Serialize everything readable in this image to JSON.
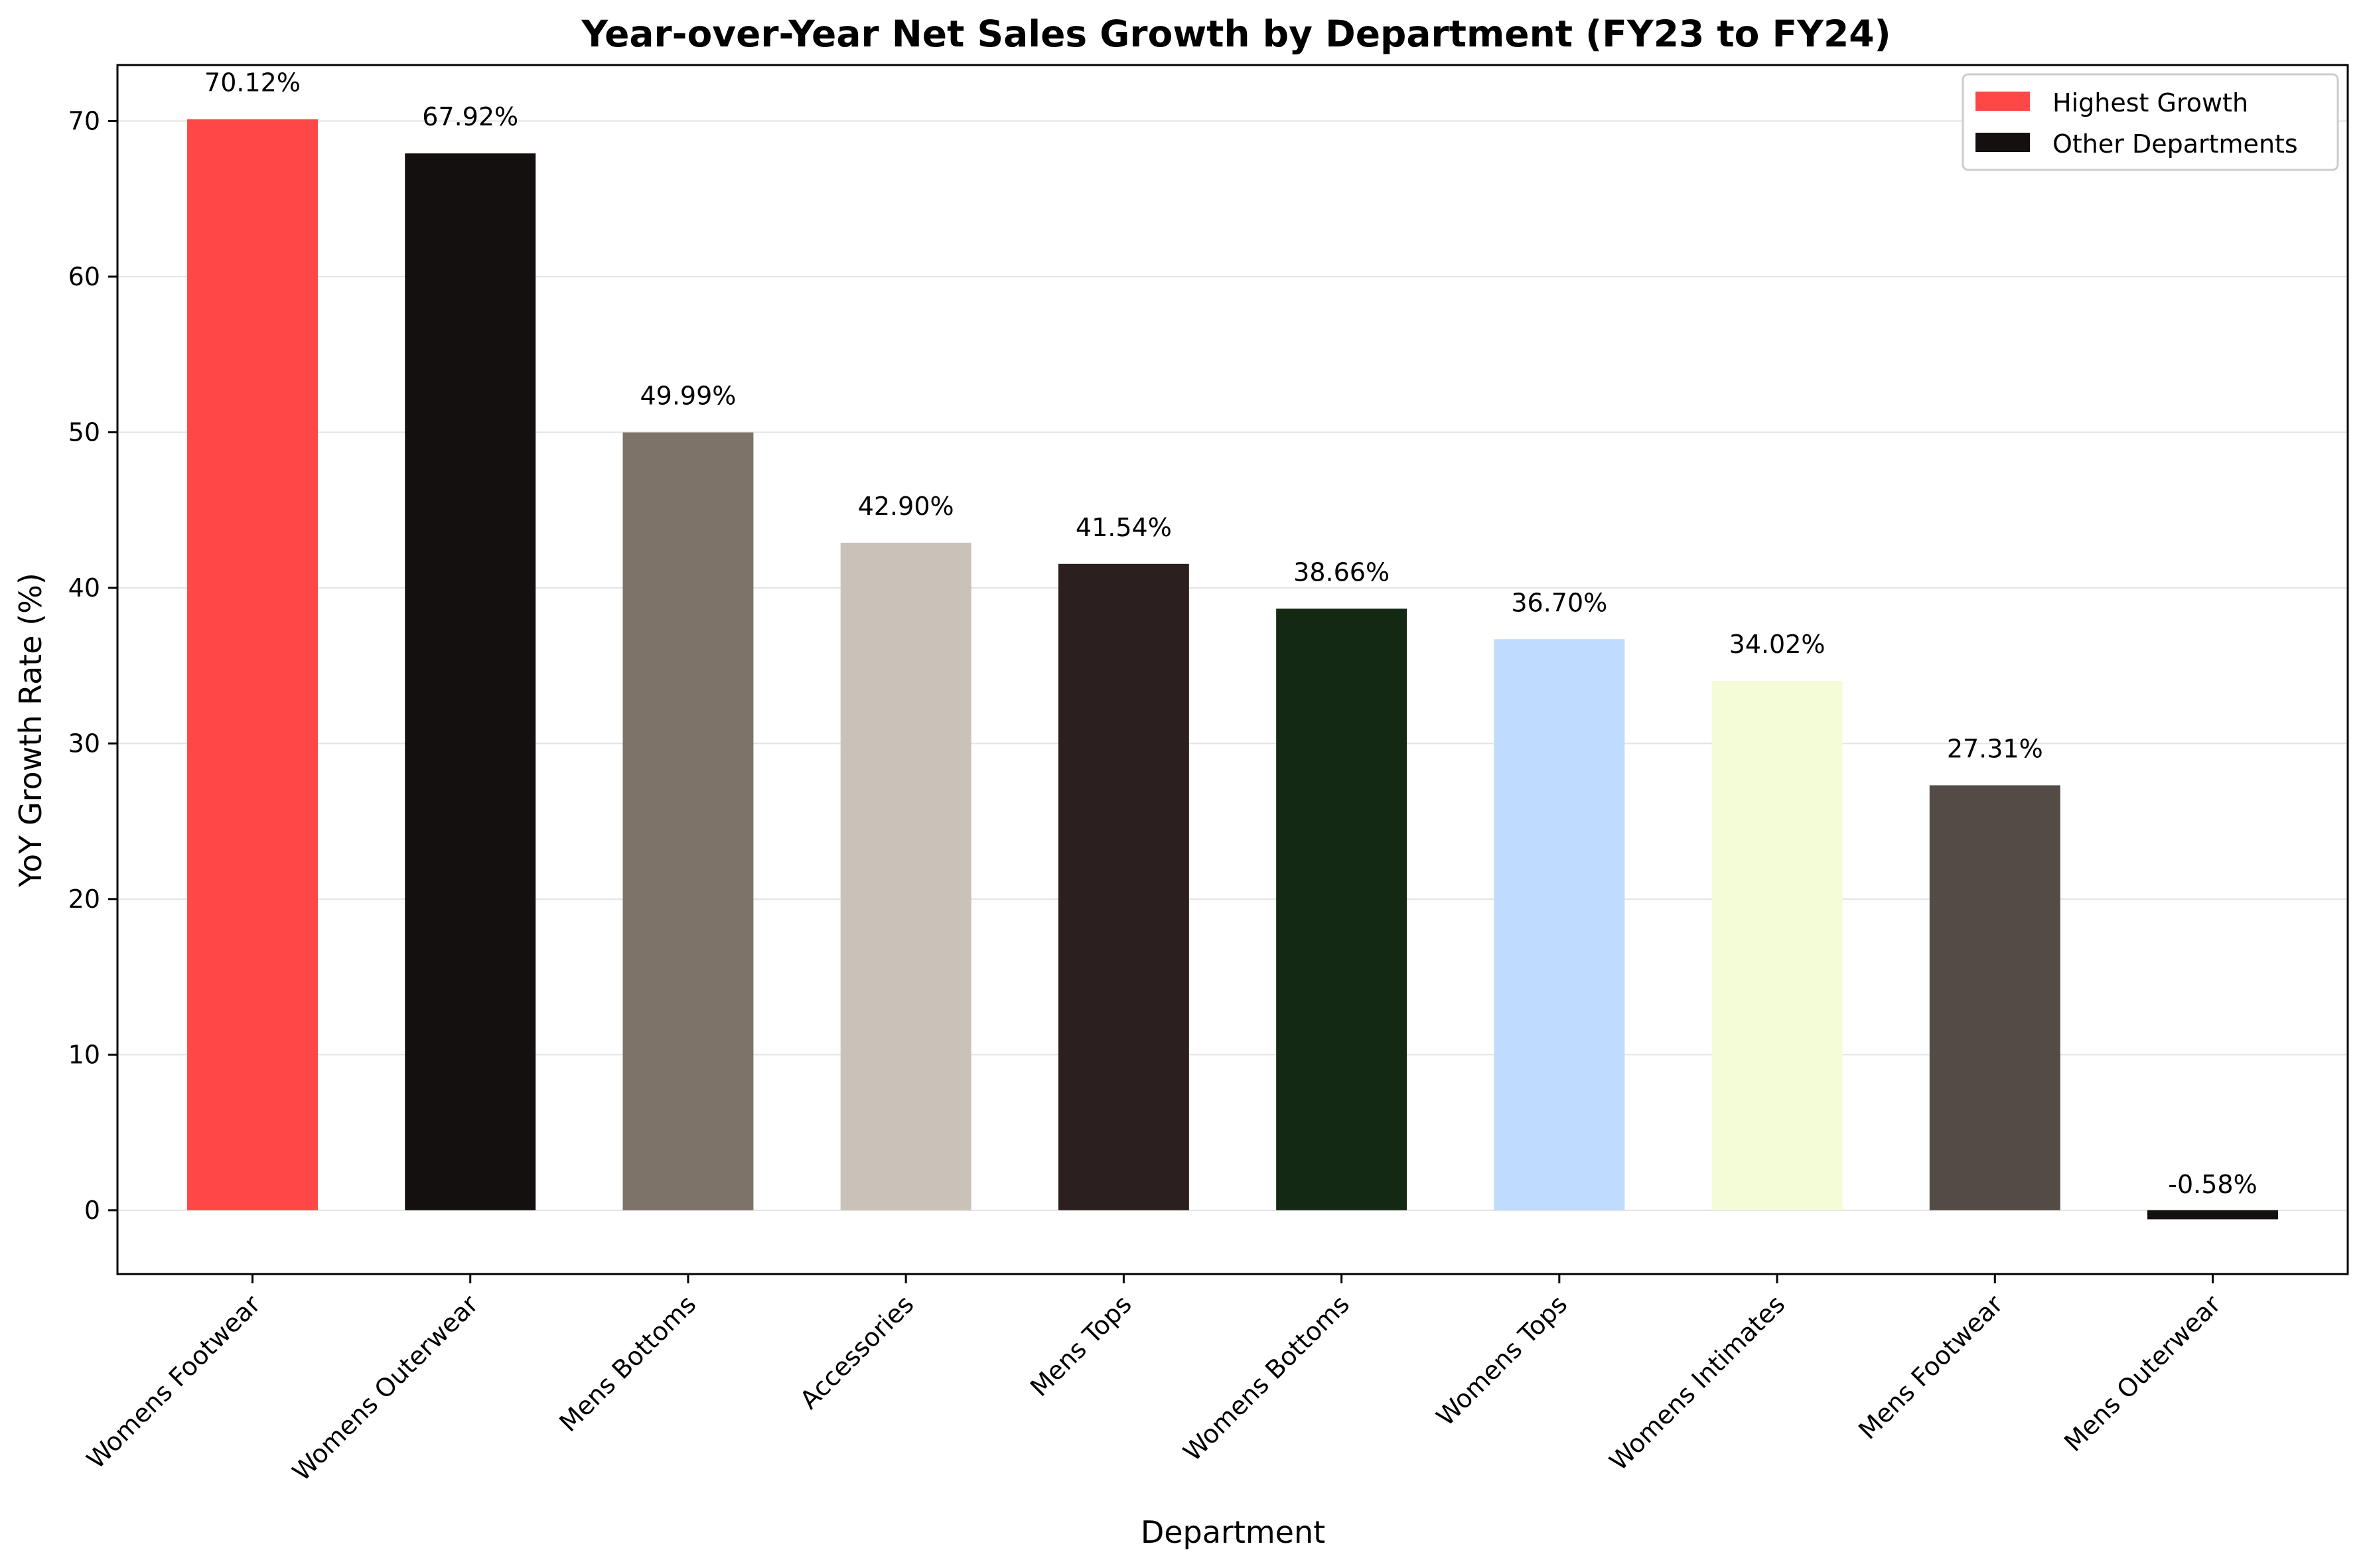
{
  "chart_data": {
    "type": "bar",
    "title": "Year-over-Year Net Sales Growth by Department (FY23 to FY24)",
    "xlabel": "Department",
    "ylabel": "YoY Growth Rate (%)",
    "ylim": [
      -4.1,
      73.6
    ],
    "yticks": [
      0,
      10,
      20,
      30,
      40,
      50,
      60,
      70
    ],
    "grid": "horizontal",
    "legend_position": "top-right",
    "categories": [
      "Womens Footwear",
      "Womens Outerwear",
      "Mens Bottoms",
      "Accessories",
      "Mens Tops",
      "Womens Bottoms",
      "Womens Tops",
      "Womens Intimates",
      "Mens Footwear",
      "Mens Outerwear"
    ],
    "values": [
      70.12,
      67.92,
      49.99,
      42.9,
      41.54,
      38.66,
      36.7,
      34.02,
      27.31,
      -0.58
    ],
    "value_labels": [
      "70.12%",
      "67.92%",
      "49.99%",
      "42.90%",
      "41.54%",
      "38.66%",
      "36.70%",
      "34.02%",
      "27.31%",
      "-0.58%"
    ],
    "bar_colors": [
      "#ff4747",
      "#141010",
      "#7e7368",
      "#c9c2b8",
      "#2b201f",
      "#132914",
      "#bfdcfe",
      "#f3fcd7",
      "#534b45",
      "#141010"
    ],
    "legend": [
      {
        "label": "Highest Growth",
        "color": "#ff4747"
      },
      {
        "label": "Other Departments",
        "color": "#141010"
      }
    ]
  }
}
